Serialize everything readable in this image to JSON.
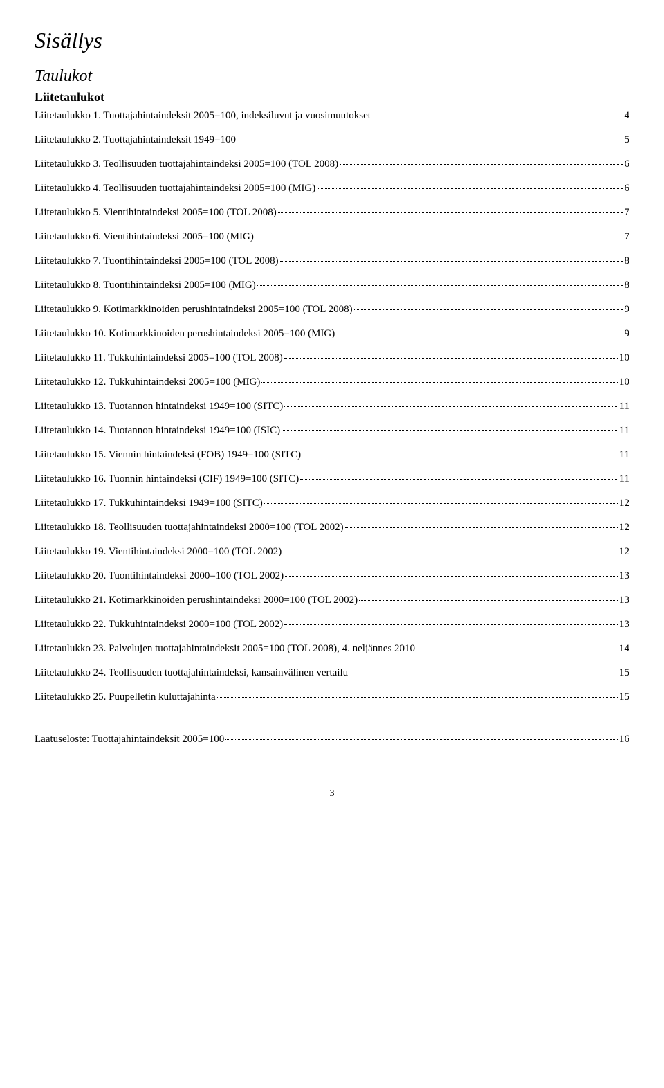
{
  "title": "Sisällys",
  "section": "Taulukot",
  "subsection": "Liitetaulukot",
  "entries": [
    {
      "label": "Liitetaulukko 1. Tuottajahintaindeksit 2005=100, indeksiluvut ja vuosimuutokset",
      "page": "4"
    },
    {
      "label": "Liitetaulukko 2. Tuottajahintaindeksit 1949=100",
      "page": "5"
    },
    {
      "label": "Liitetaulukko 3. Teollisuuden tuottajahintaindeksi 2005=100 (TOL 2008)",
      "page": "6"
    },
    {
      "label": "Liitetaulukko 4. Teollisuuden tuottajahintaindeksi 2005=100 (MIG)",
      "page": "6"
    },
    {
      "label": "Liitetaulukko 5. Vientihintaindeksi 2005=100 (TOL 2008)",
      "page": "7"
    },
    {
      "label": "Liitetaulukko 6. Vientihintaindeksi 2005=100 (MIG)",
      "page": "7"
    },
    {
      "label": "Liitetaulukko 7. Tuontihintaindeksi 2005=100 (TOL 2008)",
      "page": "8"
    },
    {
      "label": "Liitetaulukko 8. Tuontihintaindeksi 2005=100 (MIG)",
      "page": "8"
    },
    {
      "label": "Liitetaulukko 9. Kotimarkkinoiden perushintaindeksi 2005=100 (TOL 2008)",
      "page": "9"
    },
    {
      "label": "Liitetaulukko 10. Kotimarkkinoiden perushintaindeksi 2005=100 (MIG)",
      "page": "9"
    },
    {
      "label": "Liitetaulukko 11. Tukkuhintaindeksi 2005=100 (TOL 2008)",
      "page": "10"
    },
    {
      "label": "Liitetaulukko 12. Tukkuhintaindeksi 2005=100 (MIG)",
      "page": "10"
    },
    {
      "label": "Liitetaulukko 13. Tuotannon hintaindeksi 1949=100 (SITC)",
      "page": "11"
    },
    {
      "label": "Liitetaulukko 14. Tuotannon hintaindeksi 1949=100 (ISIC)",
      "page": "11"
    },
    {
      "label": "Liitetaulukko 15. Viennin hintaindeksi (FOB) 1949=100 (SITC)",
      "page": "11"
    },
    {
      "label": "Liitetaulukko 16. Tuonnin hintaindeksi (CIF) 1949=100 (SITC)",
      "page": "11"
    },
    {
      "label": "Liitetaulukko 17. Tukkuhintaindeksi 1949=100 (SITC)",
      "page": "12"
    },
    {
      "label": "Liitetaulukko 18. Teollisuuden tuottajahintaindeksi 2000=100 (TOL 2002)",
      "page": "12"
    },
    {
      "label": "Liitetaulukko 19. Vientihintaindeksi 2000=100 (TOL 2002)",
      "page": "12"
    },
    {
      "label": "Liitetaulukko 20. Tuontihintaindeksi 2000=100 (TOL 2002)",
      "page": "13"
    },
    {
      "label": "Liitetaulukko 21. Kotimarkkinoiden perushintaindeksi 2000=100 (TOL 2002)",
      "page": "13"
    },
    {
      "label": "Liitetaulukko 22. Tukkuhintaindeksi 2000=100 (TOL 2002)",
      "page": "13"
    },
    {
      "label": "Liitetaulukko 23. Palvelujen tuottajahintaindeksit 2005=100 (TOL 2008), 4. neljännes 2010",
      "page": "14"
    },
    {
      "label": "Liitetaulukko 24. Teollisuuden tuottajahintaindeksi, kansainvälinen vertailu",
      "page": "15"
    },
    {
      "label": "Liitetaulukko 25. Puupelletin kuluttajahinta",
      "page": "15"
    }
  ],
  "footer_entry": {
    "label": "Laatuseloste: Tuottajahintaindeksit 2005=100",
    "page": "16"
  },
  "page_number": "3"
}
